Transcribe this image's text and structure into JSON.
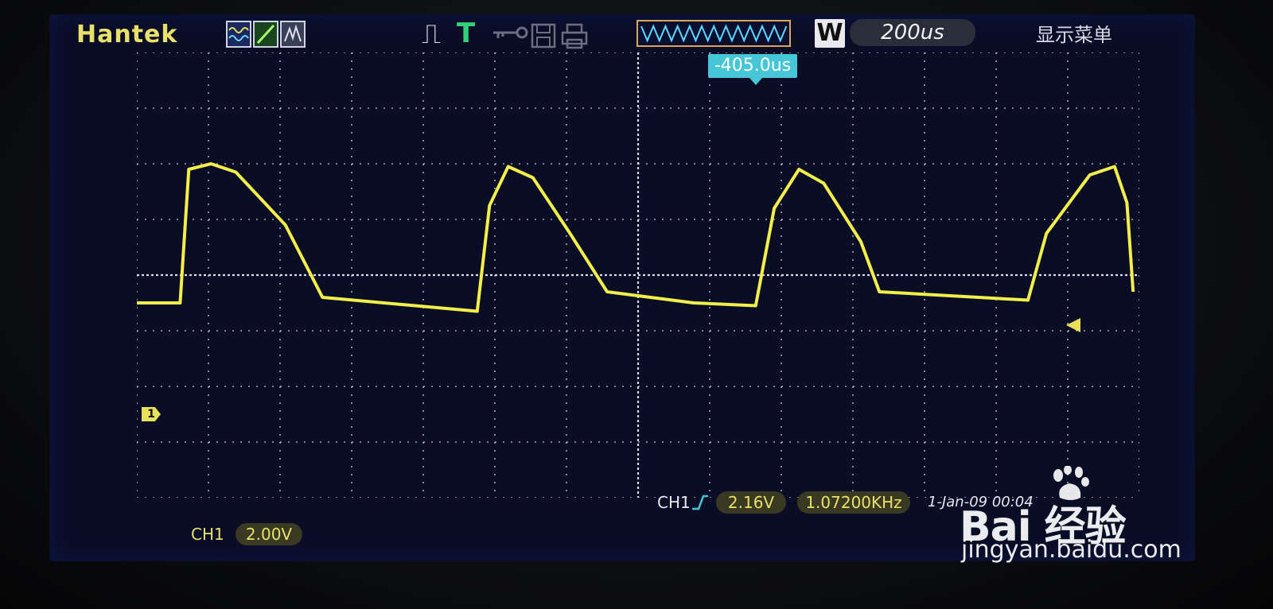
{
  "header": {
    "brand": "Hantek",
    "w_label": "W",
    "timebase": "200us",
    "menu": "显示菜单"
  },
  "trigger": {
    "position_offset": "-405.0us",
    "source": "CH1",
    "level": "2.16V",
    "frequency": "1.07200KHz",
    "datetime": "1-Jan-09 00:04"
  },
  "channel": {
    "marker": "1",
    "label": "CH1",
    "volts_per_div": "2.00V"
  },
  "watermark": {
    "brand_text": "Bai  经验",
    "url": "jingyan.baidu.com"
  },
  "colors": {
    "trace": "#f2ee4a",
    "grid": "#e6e6f0",
    "trigger_marker": "#46c6d6"
  },
  "chart_data": {
    "type": "line",
    "series": [
      {
        "values": [
          [
            0,
            -1.0
          ],
          [
            0.35,
            -1.0
          ],
          [
            0.42,
            3.8
          ],
          [
            0.6,
            4.0
          ],
          [
            0.8,
            3.7
          ],
          [
            1.2,
            1.8
          ],
          [
            1.5,
            -0.8
          ],
          [
            2.5,
            -1.2
          ],
          [
            2.75,
            -1.3
          ],
          [
            2.85,
            2.5
          ],
          [
            3.0,
            3.9
          ],
          [
            3.2,
            3.5
          ],
          [
            3.5,
            1.5
          ],
          [
            3.8,
            -0.6
          ],
          [
            4.5,
            -1.0
          ],
          [
            5.0,
            -1.1
          ],
          [
            5.15,
            2.4
          ],
          [
            5.35,
            3.8
          ],
          [
            5.55,
            3.3
          ],
          [
            5.85,
            1.2
          ],
          [
            6.0,
            -0.6
          ],
          [
            6.8,
            -0.8
          ],
          [
            7.2,
            -0.9
          ],
          [
            7.35,
            1.5
          ],
          [
            7.7,
            3.6
          ],
          [
            7.9,
            3.9
          ],
          [
            8.0,
            2.6
          ],
          [
            8.05,
            -0.6
          ]
        ]
      }
    ]
  }
}
